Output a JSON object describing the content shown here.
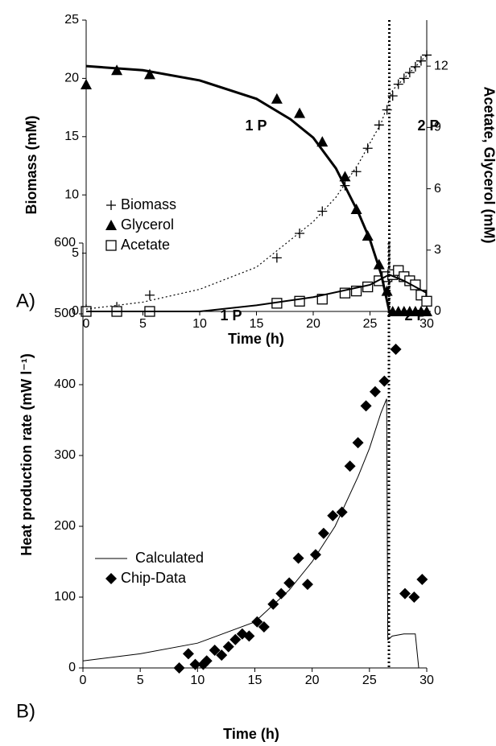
{
  "chart_data": [
    {
      "type": "scatter",
      "label": "A)",
      "xlabel": "Time (h)",
      "ylabel": "Biomass (mM)",
      "y2label": "Acetate, Glycerol (mM)",
      "annotations": [
        "1 P",
        "2 P"
      ],
      "vline": 26.7,
      "xlim": [
        0,
        30
      ],
      "xticks": [
        0,
        5,
        10,
        15,
        20,
        25,
        30
      ],
      "ylim": [
        0,
        25
      ],
      "yticks": [
        0,
        5,
        10,
        15,
        20,
        25
      ],
      "y2lim": [
        0,
        14.25
      ],
      "y2ticks": [
        0,
        3,
        6,
        9,
        12
      ],
      "series": [
        {
          "name": "Biomass",
          "marker": "plus",
          "line": "none",
          "color": "#000",
          "x": [
            0,
            2.7,
            5.6,
            16.8,
            18.8,
            20.8,
            22.8,
            23.8,
            24.8,
            25.8,
            26.5,
            27,
            27.5,
            28,
            28.5,
            29,
            29.5,
            30
          ],
          "values": [
            0.2,
            0.4,
            1.4,
            4.6,
            6.7,
            8.6,
            10.8,
            12,
            14,
            16,
            17.3,
            18.5,
            19.5,
            20,
            20.5,
            21,
            21.5,
            22
          ]
        },
        {
          "name": "Glycerol",
          "marker": "triangle",
          "line": "none",
          "color": "#000",
          "axis": "y2",
          "x": [
            0,
            2.7,
            5.6,
            16.8,
            18.8,
            20.8,
            22.8,
            23.8,
            24.8,
            25.8,
            26.5,
            27,
            27.5,
            28,
            28.5,
            29,
            29.5,
            30
          ],
          "values": [
            11.1,
            11.8,
            11.6,
            10.4,
            9.7,
            8.3,
            6.6,
            5.0,
            3.7,
            2.3,
            1.0,
            0,
            0,
            0,
            0,
            0,
            0,
            0
          ]
        },
        {
          "name": "Acetate",
          "marker": "square",
          "line": "none",
          "color": "#000",
          "axis": "y2",
          "x": [
            0,
            2.7,
            5.6,
            16.8,
            18.8,
            20.8,
            22.8,
            23.8,
            24.8,
            25.8,
            26.5,
            27,
            27.5,
            28,
            28.5,
            29,
            29.5,
            30
          ],
          "values": [
            0,
            0,
            0,
            0.4,
            0.5,
            0.6,
            0.9,
            1.0,
            1.2,
            1.5,
            1.7,
            1.8,
            2.0,
            1.7,
            1.5,
            1.3,
            0.8,
            0.5
          ]
        },
        {
          "marker": "none",
          "line": "dotted",
          "color": "#000",
          "x": [
            0,
            5,
            10,
            15,
            20,
            22,
            24,
            26,
            27,
            28,
            29,
            30
          ],
          "values": [
            0.2,
            0.8,
            1.9,
            3.8,
            7.7,
            9.8,
            12.7,
            16.2,
            19,
            20,
            21,
            22
          ]
        },
        {
          "marker": "none",
          "line": "solid",
          "color": "#000",
          "axis": "y2",
          "width": 3,
          "x": [
            0,
            5,
            10,
            15,
            18,
            20,
            22,
            24,
            25,
            26,
            26.7
          ],
          "values": [
            12.0,
            11.8,
            11.3,
            10.4,
            9.4,
            8.5,
            7.0,
            4.8,
            3.5,
            1.8,
            0
          ]
        },
        {
          "marker": "none",
          "line": "solid",
          "color": "#000",
          "axis": "y2",
          "width": 2,
          "x": [
            0,
            10,
            15,
            20,
            25,
            26.7,
            28,
            29,
            30
          ],
          "values": [
            0,
            0,
            0.3,
            0.7,
            1.3,
            1.8,
            1.5,
            1.2,
            0.9
          ]
        }
      ]
    },
    {
      "type": "scatter",
      "label": "B)",
      "xlabel": "Time  (h)",
      "ylabel": "Heat production rate (mW l⁻¹)",
      "annotations": [
        "1 P",
        "2 P"
      ],
      "vline": 26.7,
      "xlim": [
        0,
        30
      ],
      "xticks": [
        0,
        5,
        10,
        15,
        20,
        25,
        30
      ],
      "ylim": [
        0,
        600
      ],
      "yticks": [
        0,
        100,
        200,
        300,
        400,
        500,
        600
      ],
      "series": [
        {
          "name": "Calculated",
          "marker": "none",
          "line": "solid",
          "color": "#000",
          "width": 1,
          "x": [
            0,
            5,
            10,
            15,
            18,
            20,
            22,
            24,
            25,
            26,
            26.5,
            26.6,
            27,
            28,
            29,
            29.3
          ],
          "values": [
            10,
            20,
            35,
            65,
            110,
            150,
            200,
            270,
            310,
            360,
            380,
            40,
            45,
            48,
            48,
            0
          ]
        },
        {
          "name": "Chip-Data",
          "marker": "diamond",
          "line": "none",
          "color": "#000",
          "x": [
            8.4,
            9.2,
            9.8,
            10.5,
            10.8,
            11.5,
            12.1,
            12.7,
            13.3,
            13.9,
            14.5,
            15.2,
            15.8,
            16.6,
            17.3,
            18,
            18.8,
            19.6,
            20.3,
            21,
            21.8,
            22.6,
            23.3,
            24,
            24.7,
            25.5,
            26.3,
            27.3,
            28.1,
            28.9,
            29.6
          ],
          "values": [
            0,
            20,
            5,
            5,
            10,
            25,
            18,
            30,
            40,
            48,
            45,
            65,
            58,
            90,
            105,
            120,
            155,
            118,
            160,
            190,
            215,
            220,
            285,
            318,
            370,
            390,
            405,
            450,
            105,
            100,
            125
          ]
        }
      ]
    }
  ]
}
